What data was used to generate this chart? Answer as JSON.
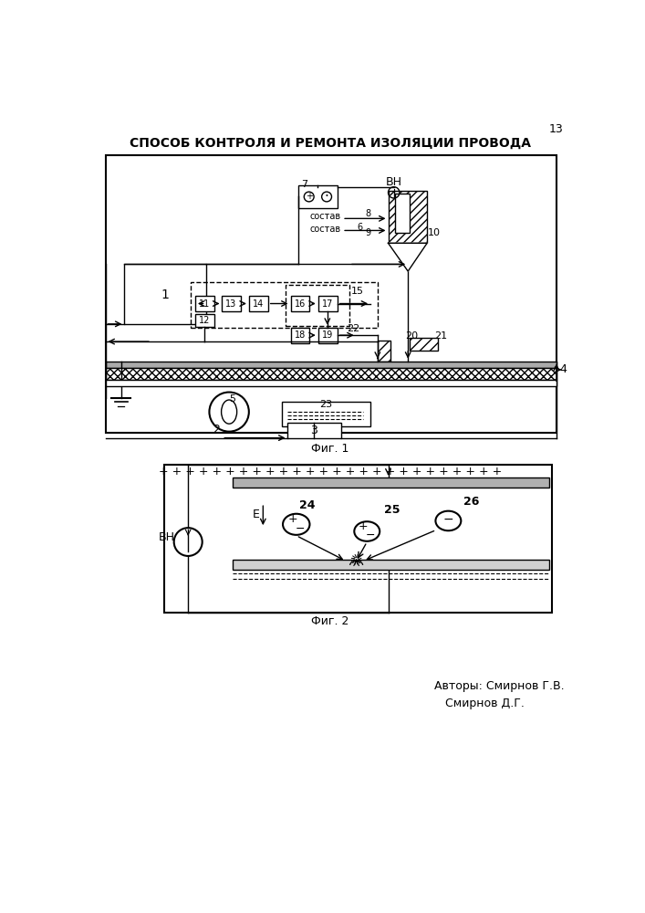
{
  "title": "СПОСОБ КОНТРОЛЯ И РЕМОНТА ИЗОЛЯЦИИ ПРОВОДА",
  "page_number": "13",
  "fig1_caption": "Фиг. 1",
  "fig2_caption": "Фиг. 2",
  "authors_line1": "Авторы: Смирнов Г.В.",
  "authors_line2": "Смирнов Д.Г.",
  "bg_color": "#ffffff",
  "line_color": "#000000"
}
